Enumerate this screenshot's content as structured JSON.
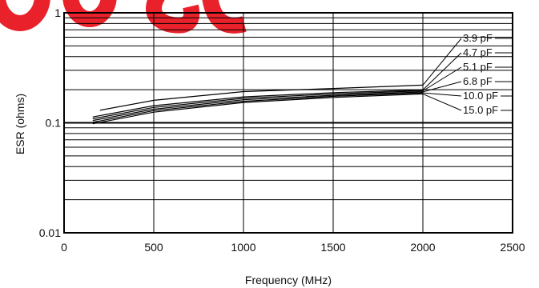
{
  "chart_data": {
    "type": "line",
    "xlabel": "Frequency (MHz)",
    "ylabel": "ESR (ohms)",
    "xlim": [
      0,
      2500
    ],
    "ylim": [
      0.01,
      1
    ],
    "yscale": "log",
    "grid": true,
    "x_ticks": [
      "0",
      "500",
      "1000",
      "1500",
      "2000",
      "2500"
    ],
    "y_ticks": [
      "1",
      "0.1",
      "0.01"
    ],
    "legend_placement": "right",
    "series": [
      {
        "name": "3.9 pF",
        "x": [
          200,
          500,
          1000,
          1500,
          2000
        ],
        "y": [
          0.13,
          0.16,
          0.192,
          0.205,
          0.22
        ]
      },
      {
        "name": "4.7 pF",
        "x": [
          160,
          500,
          1000,
          1500,
          2000
        ],
        "y": [
          0.113,
          0.143,
          0.172,
          0.188,
          0.199
        ]
      },
      {
        "name": "5.1 pF",
        "x": [
          160,
          500,
          1000,
          1500,
          2000
        ],
        "y": [
          0.109,
          0.138,
          0.167,
          0.183,
          0.195
        ]
      },
      {
        "name": "6.8 pF",
        "x": [
          160,
          500,
          1000,
          1500,
          2000
        ],
        "y": [
          0.105,
          0.133,
          0.162,
          0.178,
          0.191
        ]
      },
      {
        "name": "10.0 pF",
        "x": [
          160,
          500,
          1000,
          1500,
          2000
        ],
        "y": [
          0.101,
          0.129,
          0.157,
          0.174,
          0.187
        ]
      },
      {
        "name": "15.0 pF",
        "x": [
          160,
          500,
          1000,
          1500,
          2000
        ],
        "y": [
          0.098,
          0.125,
          0.153,
          0.17,
          0.183
        ]
      }
    ]
  },
  "watermark": {
    "text": "COSO",
    "color": "#e8212a"
  }
}
